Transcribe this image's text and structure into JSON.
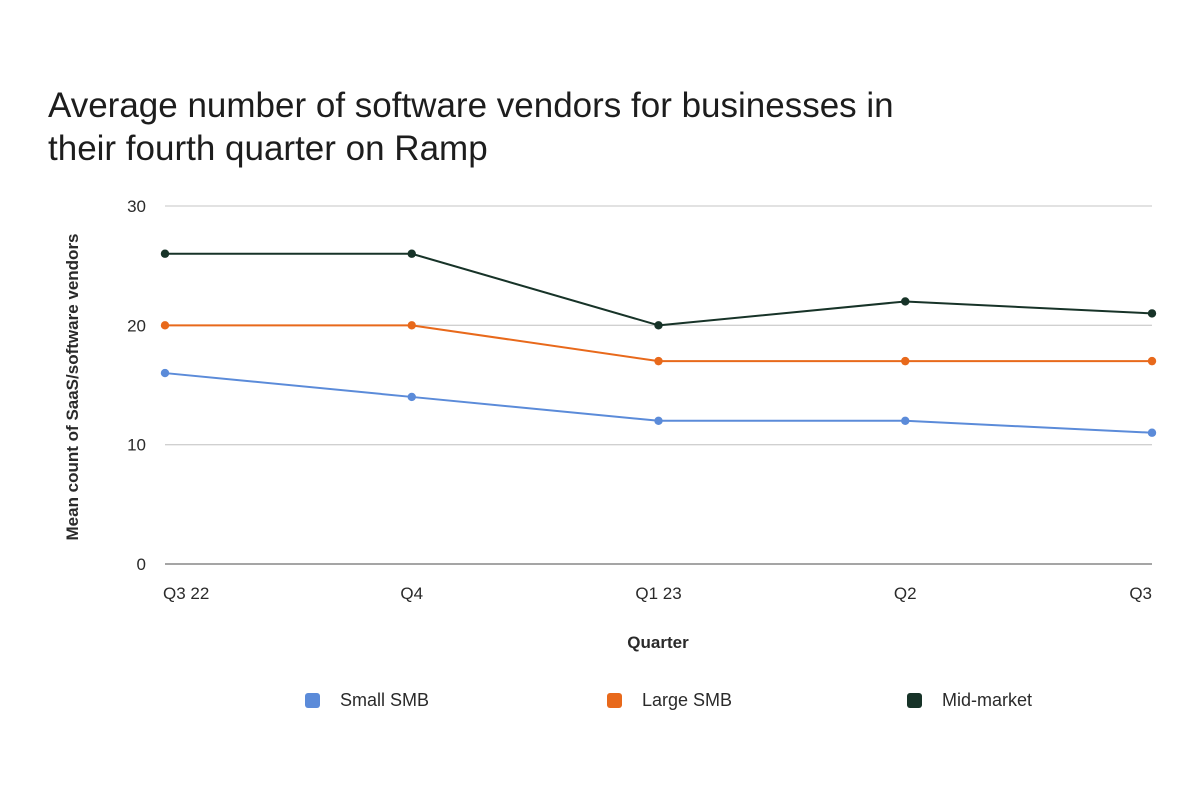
{
  "chart_data": {
    "type": "line",
    "title": "Average number of software vendors for businesses in their fourth quarter on Ramp",
    "xlabel": "Quarter",
    "ylabel": "Mean count of SaaS/software vendors",
    "categories": [
      "Q3 22",
      "Q4",
      "Q1 23",
      "Q2",
      "Q3"
    ],
    "ylim": [
      0,
      30
    ],
    "yticks": [
      "0",
      "10",
      "20",
      "30"
    ],
    "grid": true,
    "legend_position": "bottom",
    "series": [
      {
        "name": "Small SMB",
        "color": "#5b8bd9",
        "values": [
          16,
          14,
          12,
          12,
          11
        ]
      },
      {
        "name": "Large SMB",
        "color": "#e8691b",
        "values": [
          20,
          20,
          17,
          17,
          17
        ]
      },
      {
        "name": "Mid-market",
        "color": "#173328",
        "values": [
          26,
          26,
          20,
          22,
          21
        ]
      }
    ]
  }
}
